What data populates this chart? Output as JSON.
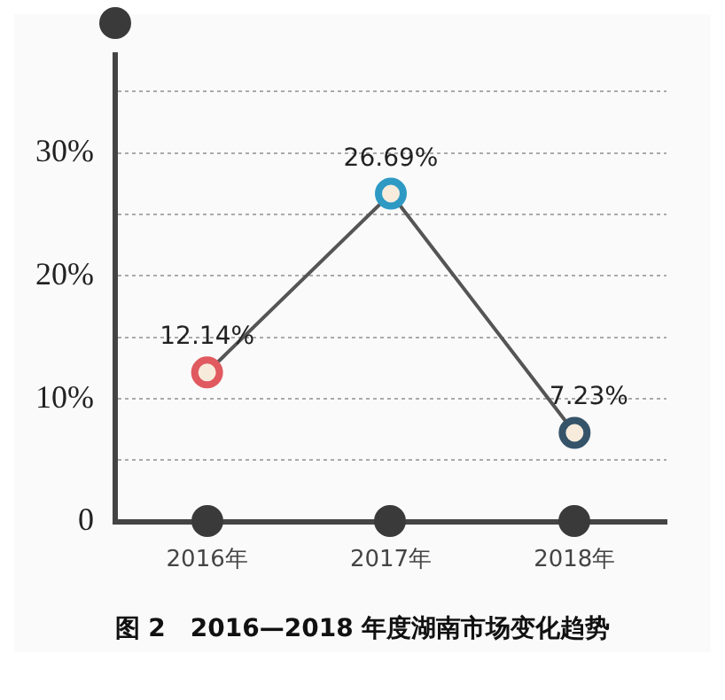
{
  "chart_data": {
    "type": "line",
    "title": "图 2　2016—2018 年度湖南市场变化趋势",
    "categories": [
      "2016年",
      "2017年",
      "2018年"
    ],
    "series": [
      {
        "color": "#555555",
        "colors": [
          "#e05a60",
          "#2e9ac4",
          "#35546a"
        ],
        "values": [
          12.14,
          26.69,
          7.23
        ],
        "value_labels": [
          "12.14%",
          "26.69%",
          "7.23%"
        ]
      }
    ],
    "ylim": [
      0,
      38
    ],
    "yticks": [
      {
        "value": 0,
        "label": "0"
      },
      {
        "value": 5,
        "label": null
      },
      {
        "value": 10,
        "label": "10%"
      },
      {
        "value": 15,
        "label": null
      },
      {
        "value": 20,
        "label": "20%"
      },
      {
        "value": 25,
        "label": null
      },
      {
        "value": 30,
        "label": "30%"
      },
      {
        "value": 35,
        "label": null
      }
    ],
    "grid": "y",
    "marker": "circle",
    "line_style": "solid",
    "legend": false
  }
}
